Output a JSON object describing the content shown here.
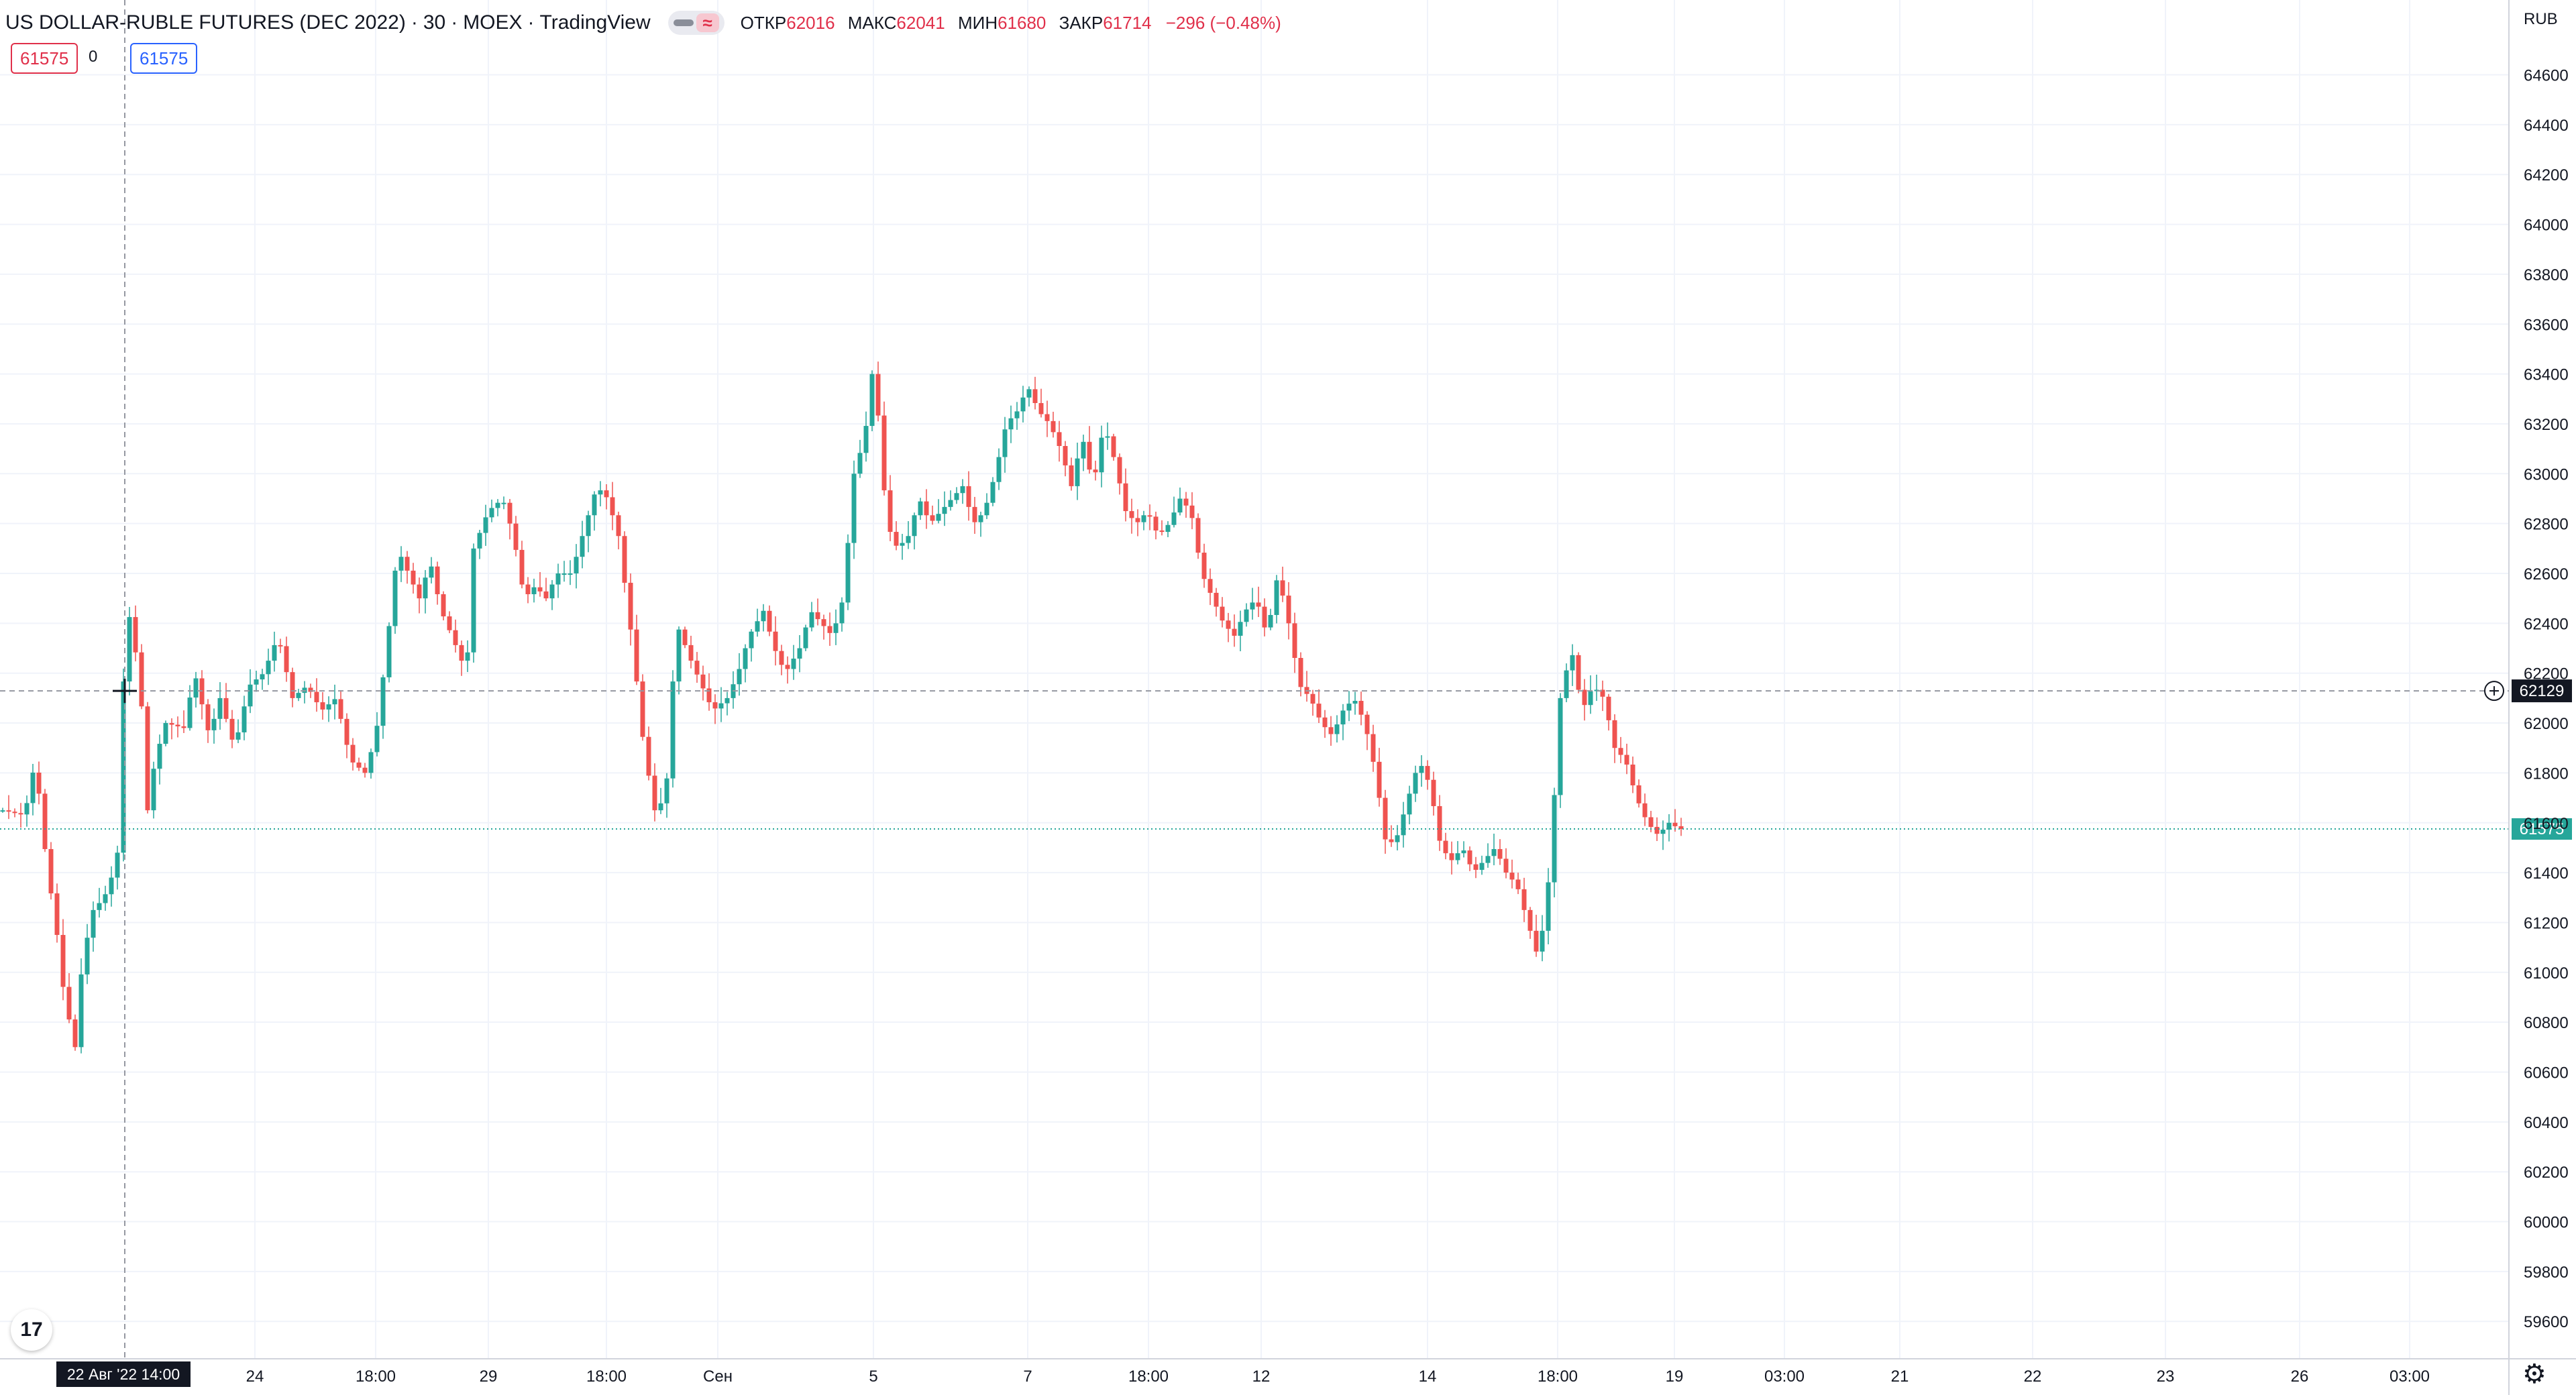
{
  "header": {
    "symbol": "US DOLLAR-RUBLE FUTURES (DEC 2022)",
    "interval": "30",
    "exchange": "MOEX",
    "source": "TradingView",
    "ohlc": {
      "open_label": "ОТКР",
      "open": "62016",
      "high_label": "МАКС",
      "high": "62041",
      "low_label": "МИН",
      "low": "61680",
      "close_label": "ЗАКР",
      "close": "61714",
      "change": "−296 (−0.48%)"
    }
  },
  "quote": {
    "bid": "61575",
    "spread": "0",
    "ask": "61575"
  },
  "colors": {
    "up": "#26a69a",
    "down": "#ef5350",
    "text": "#131722",
    "grid": "#f0f3fa",
    "crosshair": "#9598a1",
    "current": "#26a69a"
  },
  "chart_data": {
    "type": "candlestick",
    "currency": "RUB",
    "ylim": [
      59450,
      64900
    ],
    "y_ticks": [
      59600,
      59800,
      60000,
      60200,
      60400,
      60600,
      60800,
      61000,
      61200,
      61400,
      61600,
      61800,
      62000,
      62200,
      62400,
      62600,
      62800,
      63000,
      63200,
      63400,
      63600,
      63800,
      64000,
      64200,
      64400,
      64600
    ],
    "x_ticks": [
      "24",
      "18:00",
      "29",
      "18:00",
      "Сен",
      "5",
      "7",
      "18:00",
      "12",
      "14",
      "18:00",
      "19",
      "03:00",
      "21",
      "22",
      "23",
      "26",
      "03:00"
    ],
    "price_path": [
      [
        0,
        61650
      ],
      [
        0.6,
        61630
      ],
      [
        0.9,
        61850
      ],
      [
        1.2,
        61450
      ],
      [
        1.5,
        61150
      ],
      [
        1.7,
        60900
      ],
      [
        2.0,
        60700
      ],
      [
        2.2,
        61050
      ],
      [
        2.5,
        61250
      ],
      [
        2.8,
        61300
      ],
      [
        3.0,
        61380
      ],
      [
        3.2,
        61500
      ],
      [
        3.4,
        62500
      ],
      [
        3.6,
        62350
      ],
      [
        3.8,
        62150
      ],
      [
        4.0,
        61650
      ],
      [
        4.2,
        61850
      ],
      [
        4.5,
        62000
      ],
      [
        5.0,
        61980
      ],
      [
        5.3,
        62200
      ],
      [
        5.7,
        61950
      ],
      [
        6.0,
        62100
      ],
      [
        6.4,
        61900
      ],
      [
        6.8,
        62150
      ],
      [
        7.2,
        62200
      ],
      [
        7.6,
        62350
      ],
      [
        8.0,
        62100
      ],
      [
        8.4,
        62150
      ],
      [
        8.8,
        62050
      ],
      [
        9.2,
        62100
      ],
      [
        9.6,
        61850
      ],
      [
        10.0,
        61800
      ],
      [
        10.3,
        61950
      ],
      [
        10.6,
        62300
      ],
      [
        10.9,
        62700
      ],
      [
        11.2,
        62600
      ],
      [
        11.5,
        62500
      ],
      [
        11.8,
        62650
      ],
      [
        12.1,
        62450
      ],
      [
        12.4,
        62350
      ],
      [
        12.8,
        62200
      ],
      [
        13.0,
        62700
      ],
      [
        13.4,
        62850
      ],
      [
        13.8,
        62900
      ],
      [
        14.1,
        62750
      ],
      [
        14.4,
        62500
      ],
      [
        14.7,
        62550
      ],
      [
        15.0,
        62500
      ],
      [
        15.3,
        62600
      ],
      [
        15.7,
        62600
      ],
      [
        16.0,
        62750
      ],
      [
        16.4,
        62950
      ],
      [
        16.7,
        62900
      ],
      [
        17.0,
        62750
      ],
      [
        17.4,
        62300
      ],
      [
        17.7,
        61900
      ],
      [
        18.0,
        61650
      ],
      [
        18.3,
        61700
      ],
      [
        18.6,
        62400
      ],
      [
        19.0,
        62250
      ],
      [
        19.3,
        62150
      ],
      [
        19.6,
        62050
      ],
      [
        20.0,
        62100
      ],
      [
        20.3,
        62200
      ],
      [
        20.6,
        62350
      ],
      [
        21.0,
        62450
      ],
      [
        21.3,
        62300
      ],
      [
        21.6,
        62200
      ],
      [
        22.0,
        62300
      ],
      [
        22.3,
        62450
      ],
      [
        22.6,
        62400
      ],
      [
        22.9,
        62350
      ],
      [
        23.2,
        62500
      ],
      [
        23.5,
        63000
      ],
      [
        23.8,
        63150
      ],
      [
        24.0,
        63400
      ],
      [
        24.2,
        63200
      ],
      [
        24.4,
        62800
      ],
      [
        24.7,
        62700
      ],
      [
        25.0,
        62750
      ],
      [
        25.3,
        62900
      ],
      [
        25.6,
        62800
      ],
      [
        25.9,
        62850
      ],
      [
        26.2,
        62900
      ],
      [
        26.5,
        62950
      ],
      [
        26.8,
        62800
      ],
      [
        27.1,
        62850
      ],
      [
        27.4,
        63000
      ],
      [
        27.7,
        63200
      ],
      [
        28.0,
        63250
      ],
      [
        28.3,
        63350
      ],
      [
        28.6,
        63250
      ],
      [
        28.9,
        63200
      ],
      [
        29.2,
        63100
      ],
      [
        29.5,
        62950
      ],
      [
        29.8,
        63150
      ],
      [
        30.1,
        62950
      ],
      [
        30.4,
        63200
      ],
      [
        30.7,
        63050
      ],
      [
        31.0,
        62850
      ],
      [
        31.3,
        62800
      ],
      [
        31.6,
        62850
      ],
      [
        31.9,
        62750
      ],
      [
        32.2,
        62800
      ],
      [
        32.5,
        62900
      ],
      [
        32.8,
        62850
      ],
      [
        33.1,
        62600
      ],
      [
        33.4,
        62500
      ],
      [
        33.7,
        62400
      ],
      [
        34.0,
        62350
      ],
      [
        34.3,
        62450
      ],
      [
        34.6,
        62500
      ],
      [
        34.9,
        62350
      ],
      [
        35.2,
        62600
      ],
      [
        35.5,
        62400
      ],
      [
        35.8,
        62150
      ],
      [
        36.1,
        62100
      ],
      [
        36.4,
        62000
      ],
      [
        36.7,
        61950
      ],
      [
        37.0,
        62050
      ],
      [
        37.3,
        62100
      ],
      [
        37.6,
        62000
      ],
      [
        37.9,
        61800
      ],
      [
        38.2,
        61500
      ],
      [
        38.5,
        61550
      ],
      [
        38.8,
        61700
      ],
      [
        39.1,
        61850
      ],
      [
        39.4,
        61750
      ],
      [
        39.7,
        61500
      ],
      [
        40.0,
        61450
      ],
      [
        40.3,
        61500
      ],
      [
        40.6,
        61400
      ],
      [
        40.9,
        61450
      ],
      [
        41.2,
        61500
      ],
      [
        41.5,
        61400
      ],
      [
        41.8,
        61350
      ],
      [
        42.1,
        61200
      ],
      [
        42.4,
        61050
      ],
      [
        42.7,
        61400
      ],
      [
        43.0,
        62100
      ],
      [
        43.3,
        62300
      ],
      [
        43.6,
        62050
      ],
      [
        43.9,
        62150
      ],
      [
        44.2,
        62100
      ],
      [
        44.5,
        61900
      ],
      [
        44.8,
        61850
      ],
      [
        45.1,
        61700
      ],
      [
        45.4,
        61600
      ],
      [
        45.7,
        61550
      ],
      [
        46.0,
        61600
      ],
      [
        46.3,
        61575
      ]
    ]
  }
}
